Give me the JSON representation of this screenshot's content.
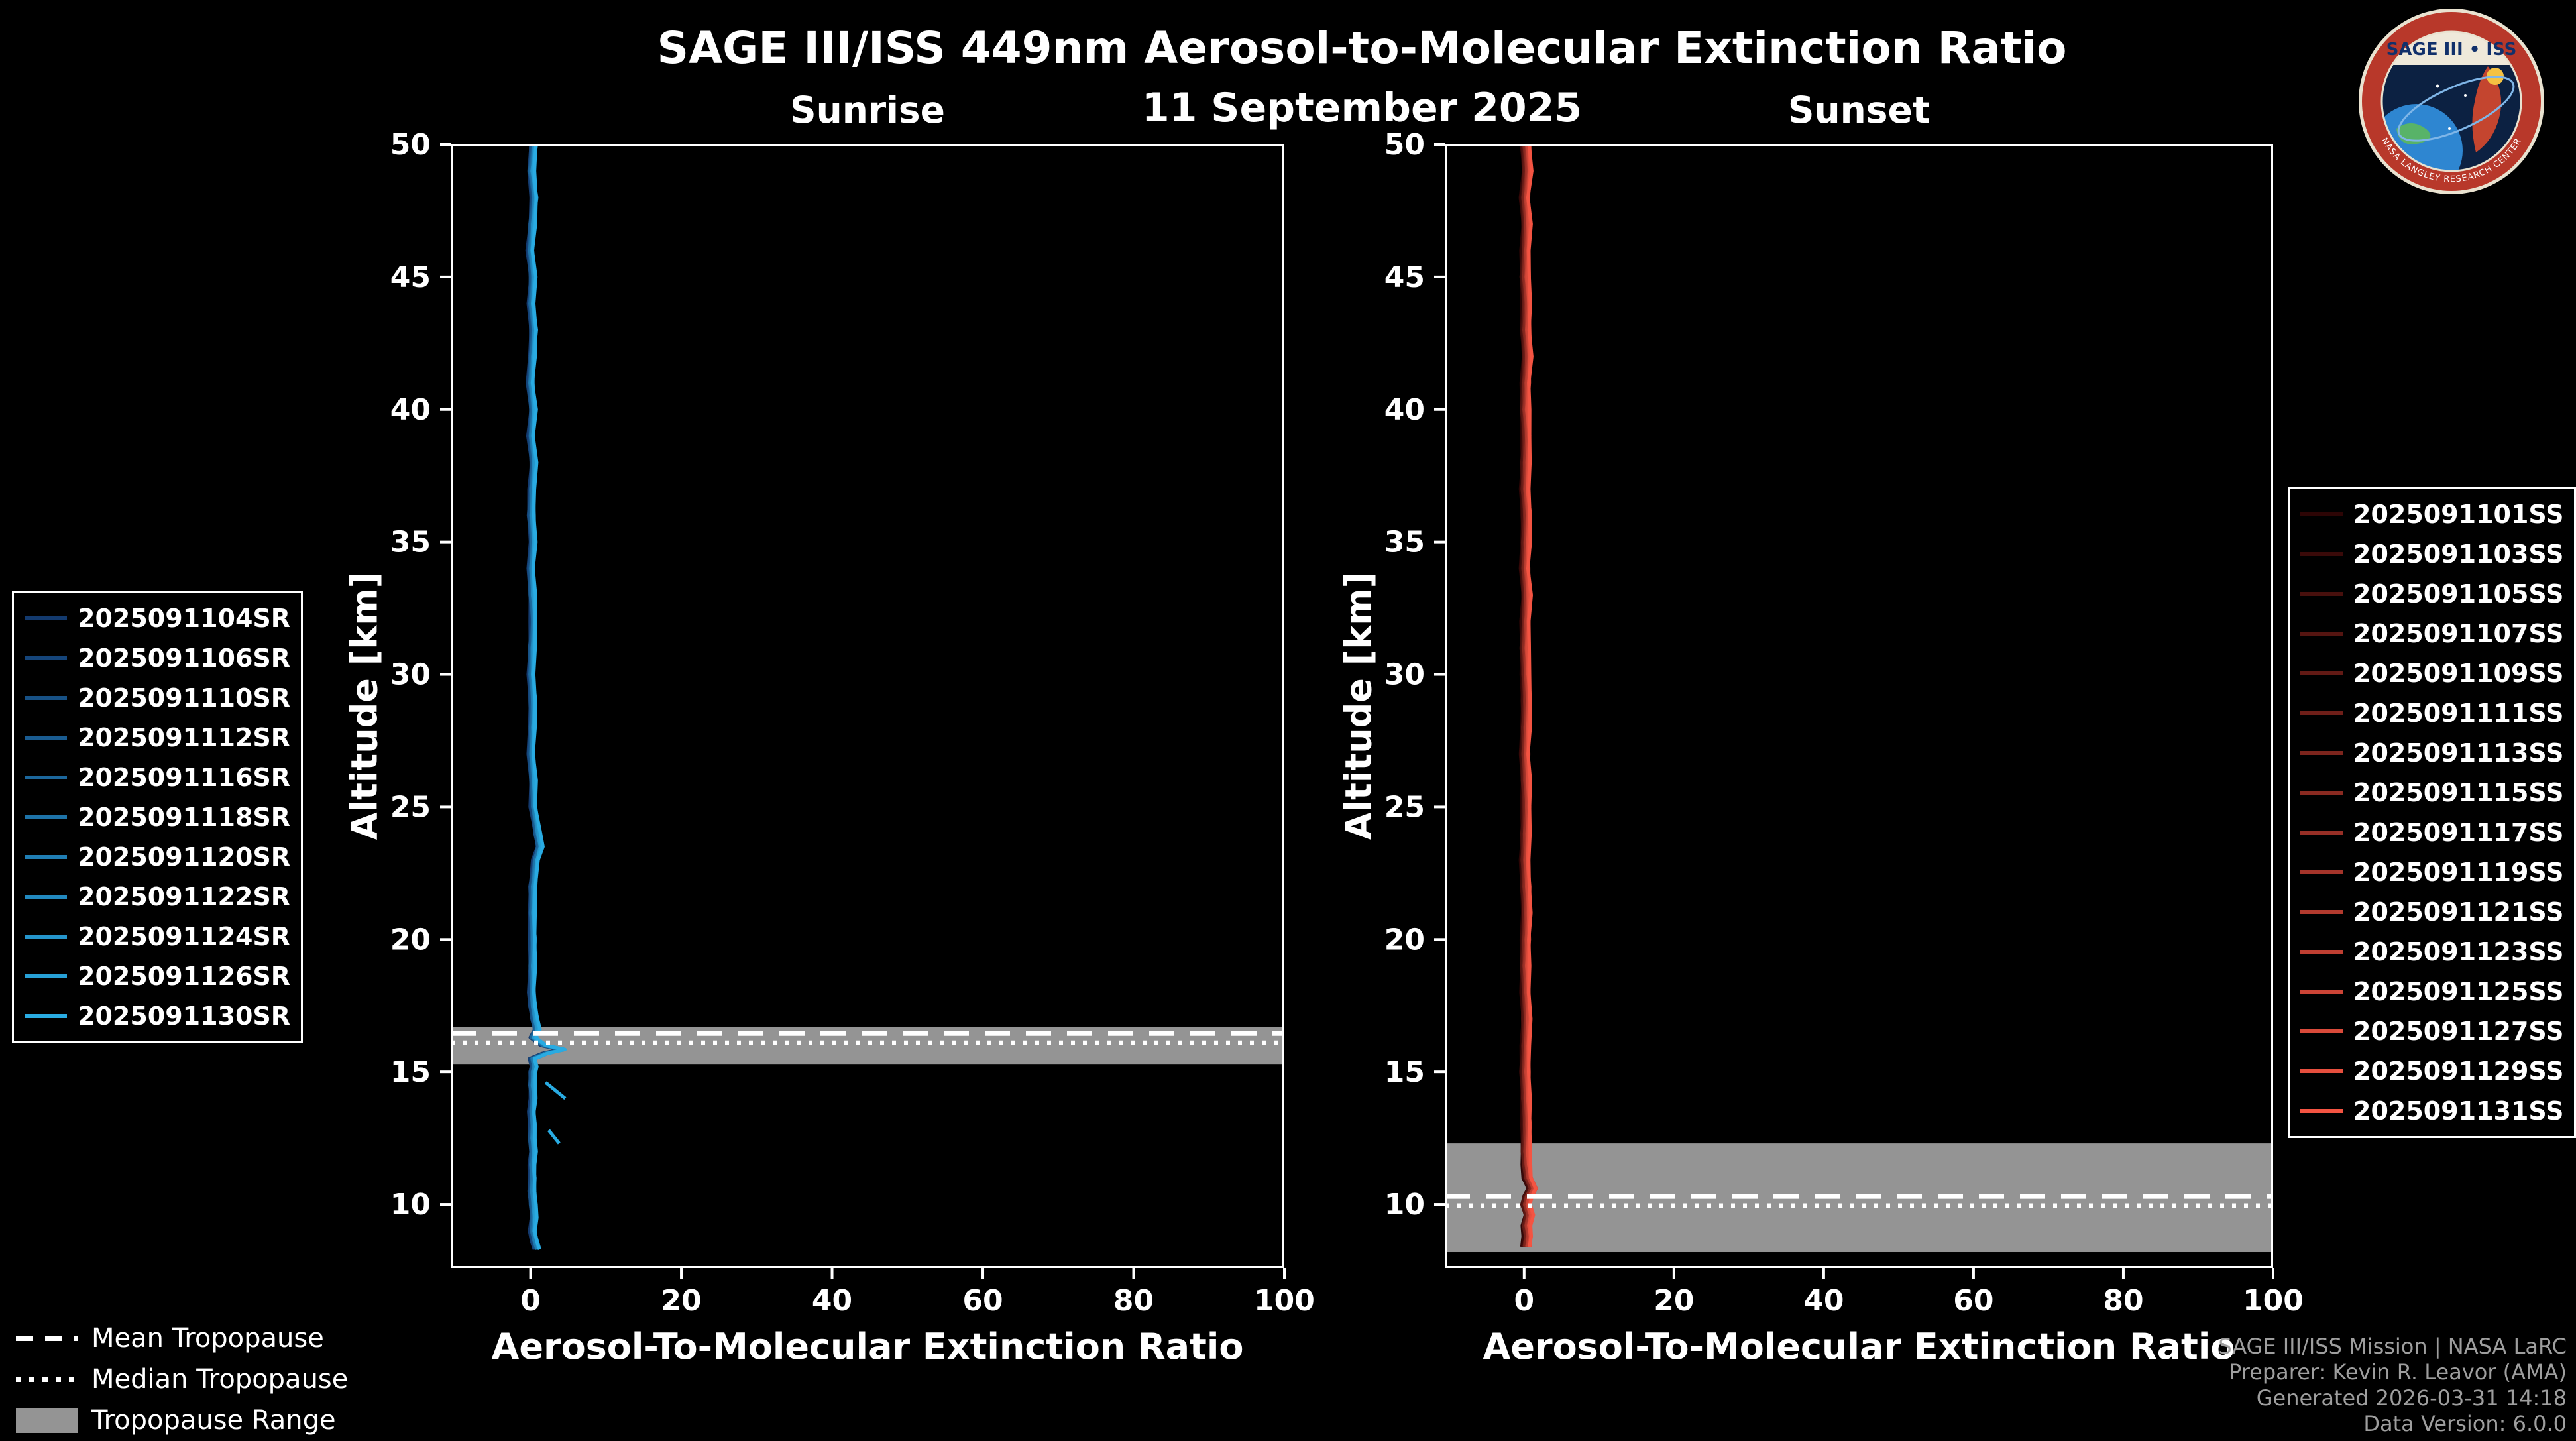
{
  "header": {
    "title": "SAGE III/ISS 449nm Aerosol-to-Molecular Extinction Ratio",
    "date": "11 September 2025"
  },
  "colors": {
    "background": "#000000",
    "axes": "#ffffff",
    "tropopause_band": "#949494",
    "tropopause_lines": "#ffffff",
    "sunrise_bright": "#29abe2",
    "sunset_bright": "#f45442"
  },
  "tropopause_legend": {
    "mean": "Mean Tropopause",
    "median": "Median Tropopause",
    "range": "Tropopause Range"
  },
  "footer": {
    "line1": "SAGE III/ISS Mission | NASA LaRC",
    "line2": "Preparer: Kevin R. Leavor (AMA)",
    "line3": "Generated 2026-03-31 14:18",
    "line4": "Data Version: 6.0.0"
  },
  "logo": {
    "title": "SAGE III • ISS",
    "ring_text": "NASA LANGLEY RESEARCH CENTER"
  },
  "chart_data": [
    {
      "type": "line",
      "panel": "Sunrise",
      "xlabel": "Aerosol-To-Molecular Extinction Ratio",
      "ylabel": "Altitude [km]",
      "xlim": [
        -10.6,
        100
      ],
      "ylim": [
        7.6,
        50
      ],
      "xticks": [
        0,
        20,
        40,
        60,
        80,
        100
      ],
      "yticks": [
        10,
        15,
        20,
        25,
        30,
        35,
        40,
        45,
        50
      ],
      "tropopause": {
        "mean_km": 16.45,
        "median_km": 16.1,
        "range_km": [
          15.3,
          16.7
        ]
      },
      "series": [
        {
          "name": "2025091104SR",
          "color": "#133a6e"
        },
        {
          "name": "2025091106SR",
          "color": "#15457a"
        },
        {
          "name": "2025091110SR",
          "color": "#175185"
        },
        {
          "name": "2025091112SR",
          "color": "#1a5c91"
        },
        {
          "name": "2025091116SR",
          "color": "#1c679c"
        },
        {
          "name": "2025091118SR",
          "color": "#1e73a8"
        },
        {
          "name": "2025091120SR",
          "color": "#207eb4"
        },
        {
          "name": "2025091122SR",
          "color": "#2289bf"
        },
        {
          "name": "2025091124SR",
          "color": "#2595cb"
        },
        {
          "name": "2025091126SR",
          "color": "#27a0d6"
        },
        {
          "name": "2025091130SR",
          "color": "#29abe2"
        }
      ],
      "profile_alt_km": [
        50,
        49,
        48,
        47,
        46,
        45,
        44,
        43,
        42,
        41,
        40,
        39,
        38,
        37,
        36,
        35,
        34,
        33,
        32,
        31,
        30,
        29,
        28,
        27,
        26,
        25,
        24,
        23.5,
        23,
        22,
        21,
        20,
        19,
        18,
        17.5,
        17,
        16.6,
        16.3,
        16,
        15.85,
        15.7,
        15.5,
        15.2,
        15,
        14.5,
        14,
        13.5,
        13,
        12.5,
        12,
        11.5,
        11,
        10.5,
        10,
        9.5,
        9,
        8.6,
        8.3
      ],
      "profile_ratio": [
        0.4,
        0.1,
        0.5,
        0.2,
        0,
        0.3,
        0.1,
        0.4,
        0.2,
        0,
        0.3,
        0.1,
        0.4,
        0.2,
        0.1,
        0.3,
        0.1,
        0.2,
        0.4,
        0.2,
        0.1,
        0.3,
        0.2,
        0.1,
        0.3,
        0.4,
        0.9,
        1.2,
        0.7,
        0.3,
        0.2,
        0.3,
        0.2,
        0.2,
        0.3,
        0.5,
        0.8,
        0.3,
        1.8,
        4.3,
        2,
        0.3,
        0.5,
        0.3,
        0.2,
        0.3,
        0.2,
        0.3,
        0.2,
        0.3,
        0.2,
        0.3,
        0.2,
        0.3,
        0.4,
        0.3,
        0.6,
        0.9
      ],
      "extra_segments": [
        {
          "alt": [
            14.6,
            14.0
          ],
          "ratio": [
            2.0,
            4.6
          ]
        },
        {
          "alt": [
            12.8,
            12.3
          ],
          "ratio": [
            2.4,
            3.8
          ]
        }
      ]
    },
    {
      "type": "line",
      "panel": "Sunset",
      "xlabel": "Aerosol-To-Molecular Extinction Ratio",
      "ylabel": "Altitude [km]",
      "xlim": [
        -10.6,
        100
      ],
      "ylim": [
        7.6,
        50
      ],
      "xticks": [
        0,
        20,
        40,
        60,
        80,
        100
      ],
      "yticks": [
        10,
        15,
        20,
        25,
        30,
        35,
        40,
        45,
        50
      ],
      "tropopause": {
        "mean_km": 10.3,
        "median_km": 9.95,
        "range_km": [
          8.2,
          12.3
        ]
      },
      "series": [
        {
          "name": "2025091101SS",
          "color": "#2d0505"
        },
        {
          "name": "2025091103SS",
          "color": "#3a0a09"
        },
        {
          "name": "2025091105SS",
          "color": "#48100d"
        },
        {
          "name": "2025091107SS",
          "color": "#551511"
        },
        {
          "name": "2025091109SS",
          "color": "#621a15"
        },
        {
          "name": "2025091111SS",
          "color": "#6f1f19"
        },
        {
          "name": "2025091113SS",
          "color": "#7d251d"
        },
        {
          "name": "2025091115SS",
          "color": "#8a2a21"
        },
        {
          "name": "2025091117SS",
          "color": "#972f26"
        },
        {
          "name": "2025091119SS",
          "color": "#a4342a"
        },
        {
          "name": "2025091121SS",
          "color": "#b23a2e"
        },
        {
          "name": "2025091123SS",
          "color": "#bf3f32"
        },
        {
          "name": "2025091125SS",
          "color": "#cc4436"
        },
        {
          "name": "2025091127SS",
          "color": "#d94a3a"
        },
        {
          "name": "2025091129SS",
          "color": "#e74f3e"
        },
        {
          "name": "2025091131SS",
          "color": "#f45442"
        }
      ],
      "profile_alt_km": [
        50,
        49,
        48,
        47,
        46,
        45,
        44,
        43,
        42,
        41,
        40,
        39,
        38,
        37,
        36,
        35,
        34,
        33,
        32,
        31,
        30,
        29,
        28,
        27,
        26,
        25,
        24,
        23,
        22,
        21,
        20,
        19,
        18,
        17,
        16,
        15,
        14,
        13,
        12,
        11.5,
        11,
        10.6,
        10.3,
        10,
        9.6,
        9.2,
        8.8,
        8.4
      ],
      "profile_ratio": [
        0.2,
        0.4,
        0.1,
        0.3,
        0.2,
        0.1,
        0.3,
        0.2,
        0.4,
        0.2,
        0.1,
        0.3,
        0.2,
        0.1,
        0.3,
        0.2,
        0.1,
        0.3,
        0.2,
        0.1,
        0.2,
        0.3,
        0.2,
        0.1,
        0.2,
        0.3,
        0.2,
        0.1,
        0.2,
        0.3,
        0.2,
        0.1,
        0.2,
        0.3,
        0.2,
        0.1,
        0.2,
        0.3,
        0.2,
        0.3,
        0.5,
        1.1,
        0.5,
        0.2,
        0.6,
        0.3,
        0.5,
        0.3
      ],
      "extra_segments": []
    }
  ]
}
